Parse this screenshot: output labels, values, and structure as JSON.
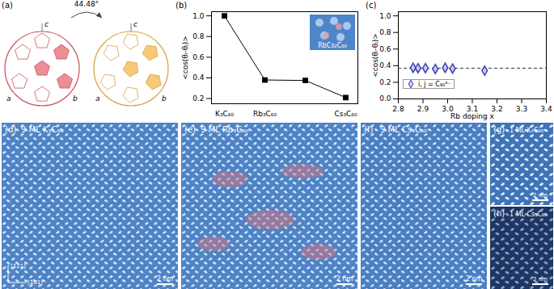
{
  "chart_data": [
    {
      "type": "line",
      "title": "(b)",
      "y_label": "<cos(θᵢ-θⱼ)>",
      "categories": [
        "K₃C₆₀",
        "Rb₃C₆₀",
        null,
        "Cs₃C₆₀"
      ],
      "values": [
        1.0,
        0.38,
        0.375,
        0.21
      ],
      "errors": [
        0,
        0.015,
        0.015,
        0.015
      ],
      "color": "#000000",
      "marker": "square",
      "ylim": [
        0.15,
        1.04
      ],
      "yticks": [
        0.2,
        0.4,
        0.6,
        0.8,
        {
          "value": 1.0,
          "label": "1.0"
        }
      ],
      "annotations": [
        "RbCs₂C₆₀"
      ],
      "grid": false
    },
    {
      "type": "scatter",
      "title": "(c)",
      "x_label": "Rb doping x",
      "y_label": "<cos(θᵢ-θⱼ)>",
      "x": [
        2.86,
        2.88,
        2.91,
        2.95,
        2.99,
        3.02,
        3.15
      ],
      "series": [
        {
          "name": "i, j = C₆₀³⁻",
          "color": "#3b3fb8",
          "marker": "diamond",
          "values": [
            0.375,
            0.37,
            0.37,
            0.36,
            0.375,
            0.365,
            0.34
          ],
          "errors": [
            0.02,
            0.015,
            0.015,
            0.02,
            0.02,
            0.05,
            0.05
          ]
        }
      ],
      "reference_line": 0.37,
      "xlim": [
        2.8,
        3.4
      ],
      "xticks": [
        2.8,
        2.9,
        {
          "value": 3.0,
          "label": "3.0"
        },
        3.1,
        3.2,
        3.3,
        3.4
      ],
      "ylim": [
        0,
        1.05
      ],
      "yticks": [
        {
          "value": 0,
          "label": "0.0"
        },
        0.2,
        0.4,
        0.6,
        0.8,
        {
          "value": 1.0,
          "label": "1.0"
        }
      ],
      "legend": "left",
      "grid": false
    }
  ],
  "figure": {
    "panels": [
      {
        "label": "(a)",
        "angle": "44.48°",
        "axes": [
          "a",
          "b",
          "c"
        ]
      },
      {
        "label": "(d)",
        "title": "9 ML K₃C₆₀",
        "directions": [
          "[1̄21]",
          "[1̄01]"
        ],
        "scale_bar": "2 nm"
      },
      {
        "label": "(e)",
        "title": "9 ML Rb₃C₆₀",
        "scale_bar": "2 nm"
      },
      {
        "label": "(f)",
        "title": "9 ML Cs₃C₆₀",
        "scale_bar": "2 nm"
      },
      {
        "label": "(g)",
        "title": "1 ML K₃C₆₀",
        "scale_bar": "2 nm"
      },
      {
        "label": "(h)",
        "title": "1 ML Cs₃C₆₀",
        "scale_bar": "2 nm"
      }
    ]
  }
}
